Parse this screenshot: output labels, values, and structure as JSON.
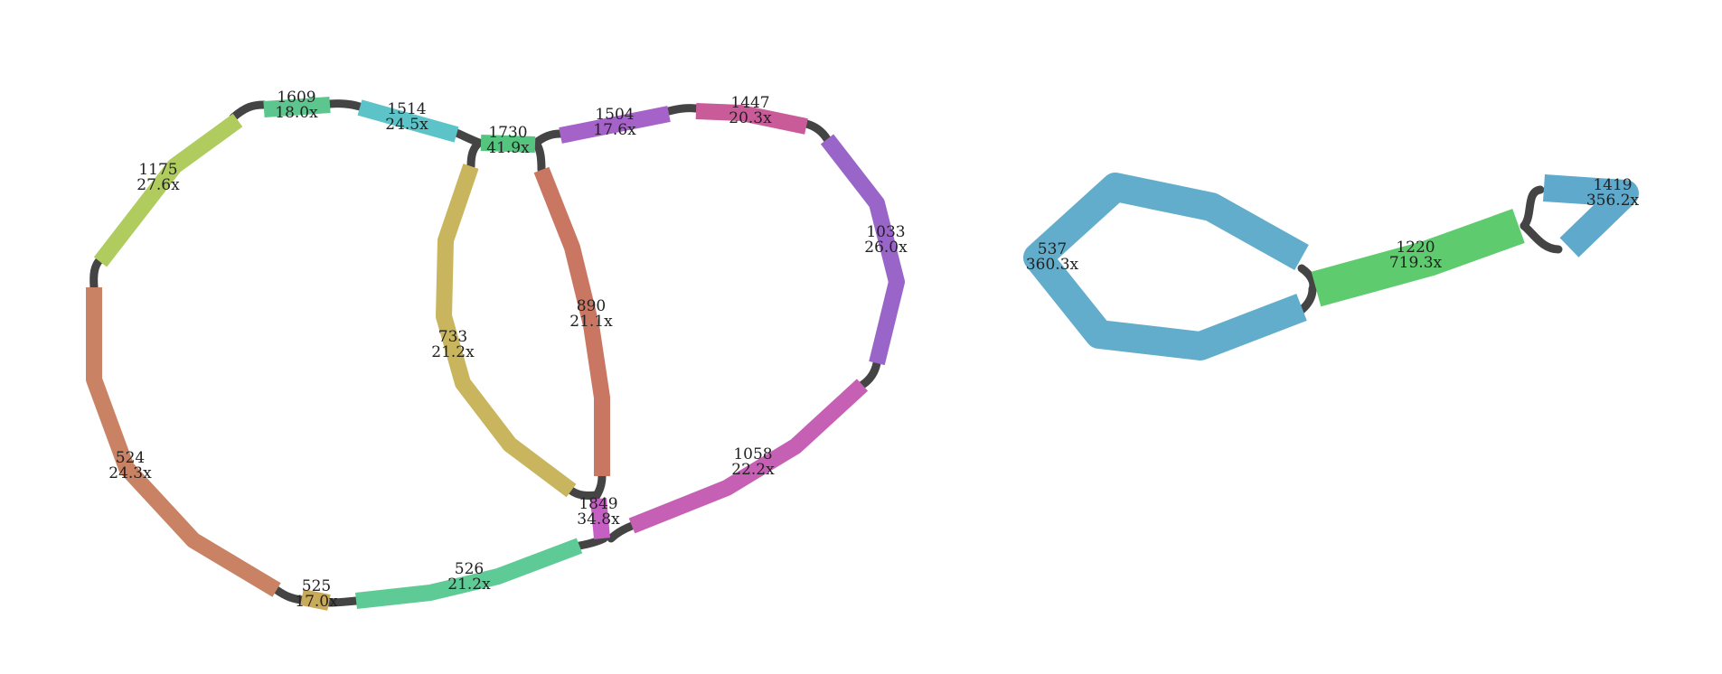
{
  "nodes": [
    {
      "id": "1609",
      "coverage": "18.0x",
      "color": "#5dc58e"
    },
    {
      "id": "1514",
      "coverage": "24.5x",
      "color": "#5cc3c8"
    },
    {
      "id": "1730",
      "coverage": "41.9x",
      "color": "#55c47f"
    },
    {
      "id": "1504",
      "coverage": "17.6x",
      "color": "#a563c9"
    },
    {
      "id": "1447",
      "coverage": "20.3x",
      "color": "#c95c98"
    },
    {
      "id": "1175",
      "coverage": "27.6x",
      "color": "#b0cc5e"
    },
    {
      "id": "1033",
      "coverage": "26.0x",
      "color": "#9965c9"
    },
    {
      "id": "890",
      "coverage": "21.1x",
      "color": "#c97763"
    },
    {
      "id": "733",
      "coverage": "21.2x",
      "color": "#c8b55d"
    },
    {
      "id": "524",
      "coverage": "24.3x",
      "color": "#c98263"
    },
    {
      "id": "1058",
      "coverage": "22.2x",
      "color": "#c660b4"
    },
    {
      "id": "1849",
      "coverage": "34.8x",
      "color": "#c65fc3"
    },
    {
      "id": "526",
      "coverage": "21.2x",
      "color": "#5ecb96"
    },
    {
      "id": "525",
      "coverage": "17.0x",
      "color": "#c9aa5a"
    },
    {
      "id": "537",
      "coverage": "360.3x",
      "color": "#62adcc"
    },
    {
      "id": "1220",
      "coverage": "719.3x",
      "color": "#5ecc6e"
    },
    {
      "id": "1419",
      "coverage": "356.2x",
      "color": "#5ea9cc"
    }
  ],
  "links_color": "#444444"
}
